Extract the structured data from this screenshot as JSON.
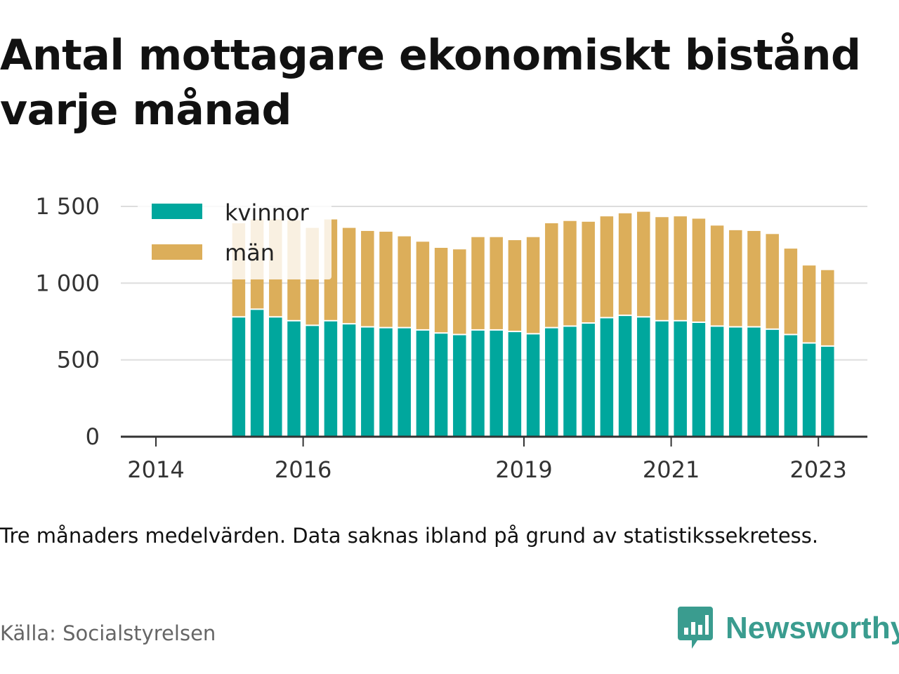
{
  "title": "Antal mottagare ekonomiskt bistånd varje månad",
  "note": "Tre månaders medelvärden. Data saknas ibland på grund av statistikssekretess.",
  "source": "Källa: Socialstyrelsen",
  "brand": {
    "name": "Newsworthy",
    "icon": "newsworthy-logo-icon",
    "color": "#3a9c8f"
  },
  "chart_data": {
    "type": "bar",
    "stacked": true,
    "x_unit": "quarter",
    "y_ticks": [
      "0",
      "500",
      "1 000",
      "1 500"
    ],
    "y_tick_values": [
      0,
      500,
      1000,
      1500
    ],
    "x_ticks": [
      "2014",
      "2016",
      "2019",
      "2021",
      "2023"
    ],
    "x_tick_values": [
      2014.0,
      2016.0,
      2019.0,
      2021.0,
      2023.0
    ],
    "x_range": [
      2013.5,
      2023.65
    ],
    "ylim": [
      0,
      1560
    ],
    "grid": true,
    "legend_position": "top-left",
    "x": [
      2015.125,
      2015.375,
      2015.625,
      2015.875,
      2016.125,
      2016.375,
      2016.625,
      2016.875,
      2017.125,
      2017.375,
      2017.625,
      2017.875,
      2018.125,
      2018.375,
      2018.625,
      2018.875,
      2019.125,
      2019.375,
      2019.625,
      2019.875,
      2020.125,
      2020.375,
      2020.625,
      2020.875,
      2021.125,
      2021.375,
      2021.625,
      2021.875,
      2022.125,
      2022.375,
      2022.625,
      2022.875,
      2023.125
    ],
    "series": [
      {
        "name": "kvinnor",
        "color": "#00a79d",
        "values": [
          785,
          835,
          785,
          760,
          730,
          760,
          740,
          720,
          715,
          715,
          700,
          680,
          670,
          700,
          700,
          690,
          675,
          715,
          725,
          745,
          780,
          795,
          785,
          760,
          760,
          750,
          725,
          720,
          720,
          705,
          670,
          615,
          595
        ]
      },
      {
        "name": "män",
        "color": "#dcae5a",
        "values": [
          605,
          580,
          630,
          650,
          630,
          655,
          620,
          620,
          620,
          590,
          570,
          550,
          550,
          600,
          600,
          590,
          625,
          675,
          680,
          655,
          655,
          660,
          680,
          670,
          675,
          670,
          650,
          625,
          620,
          615,
          555,
          500,
          490
        ]
      }
    ]
  }
}
